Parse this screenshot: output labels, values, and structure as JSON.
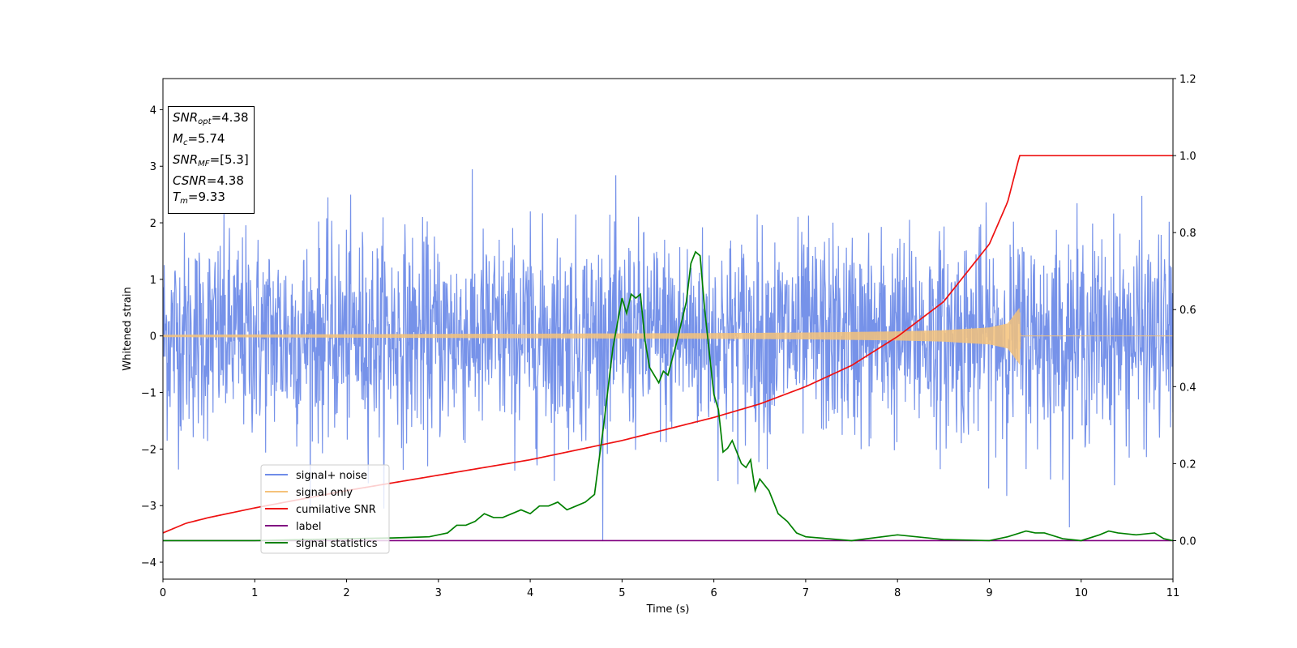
{
  "chart_data": {
    "type": "line",
    "xlabel": "Time (s)",
    "ylabel": "Whitened strain",
    "xlim": [
      0,
      11
    ],
    "ylim": [
      -4.3,
      4.55
    ],
    "y2lim": [
      -0.1,
      1.2
    ],
    "x_ticks": [
      "0",
      "1",
      "2",
      "3",
      "4",
      "5",
      "6",
      "7",
      "8",
      "9",
      "10",
      "11"
    ],
    "y_ticks": [
      "−4",
      "−3",
      "−2",
      "−1",
      "0",
      "1",
      "2",
      "3",
      "4"
    ],
    "y2_ticks": [
      "0.0",
      "0.2",
      "0.4",
      "0.6",
      "0.8",
      "1.0",
      "1.2"
    ],
    "grid": false,
    "legend_position": "lower-left",
    "series": [
      {
        "name": "signal+ noise",
        "color": "#6f8ce8",
        "axis": "left",
        "noise_sigma": 0.9,
        "ylim": [
          -3.9,
          4.2
        ]
      },
      {
        "name": "signal only",
        "color": "#f5c27a",
        "axis": "left",
        "envelope_x": [
          0,
          2,
          4,
          6,
          7,
          8,
          8.5,
          9,
          9.2,
          9.33,
          9.34,
          11
        ],
        "envelope_y": [
          0.02,
          0.03,
          0.04,
          0.05,
          0.06,
          0.08,
          0.1,
          0.15,
          0.22,
          0.5,
          0.0,
          0.0
        ],
        "merger_time": 9.33
      },
      {
        "name": "cumilative SNR",
        "color": "#ee1111",
        "axis": "right",
        "x": [
          0,
          0.25,
          0.5,
          1,
          2,
          3,
          4,
          5,
          6,
          6.5,
          7,
          7.5,
          8,
          8.5,
          9,
          9.2,
          9.33,
          11
        ],
        "values": [
          0.02,
          0.045,
          0.06,
          0.085,
          0.13,
          0.17,
          0.21,
          0.26,
          0.32,
          0.355,
          0.4,
          0.455,
          0.53,
          0.62,
          0.77,
          0.88,
          1.0,
          1.0
        ]
      },
      {
        "name": "label",
        "color": "#800080",
        "axis": "right",
        "x": [
          0,
          11
        ],
        "values": [
          0.0,
          0.0
        ]
      },
      {
        "name": "signal statistics",
        "color": "#008000",
        "axis": "right",
        "x": [
          0,
          1,
          2,
          2.5,
          2.9,
          3.0,
          3.1,
          3.2,
          3.3,
          3.4,
          3.5,
          3.6,
          3.7,
          3.8,
          3.9,
          4.0,
          4.1,
          4.2,
          4.3,
          4.4,
          4.5,
          4.6,
          4.7,
          4.8,
          4.9,
          5.0,
          5.05,
          5.1,
          5.15,
          5.2,
          5.25,
          5.3,
          5.4,
          5.45,
          5.5,
          5.6,
          5.7,
          5.75,
          5.8,
          5.85,
          5.9,
          6.0,
          6.05,
          6.1,
          6.15,
          6.2,
          6.25,
          6.3,
          6.35,
          6.4,
          6.45,
          6.5,
          6.6,
          6.7,
          6.8,
          6.9,
          7.0,
          7.5,
          8.0,
          8.5,
          9.0,
          9.2,
          9.4,
          9.5,
          9.6,
          9.8,
          10.0,
          10.2,
          10.3,
          10.4,
          10.6,
          10.8,
          10.9,
          11
        ],
        "values": [
          0.0,
          0.0,
          0.005,
          0.007,
          0.01,
          0.015,
          0.02,
          0.04,
          0.04,
          0.05,
          0.07,
          0.06,
          0.06,
          0.07,
          0.08,
          0.07,
          0.09,
          0.09,
          0.1,
          0.08,
          0.09,
          0.1,
          0.12,
          0.3,
          0.5,
          0.63,
          0.59,
          0.64,
          0.63,
          0.64,
          0.52,
          0.45,
          0.41,
          0.44,
          0.43,
          0.52,
          0.62,
          0.72,
          0.75,
          0.74,
          0.6,
          0.38,
          0.34,
          0.23,
          0.24,
          0.26,
          0.23,
          0.2,
          0.19,
          0.21,
          0.13,
          0.16,
          0.13,
          0.07,
          0.05,
          0.02,
          0.01,
          0.0,
          0.015,
          0.003,
          0.0,
          0.01,
          0.025,
          0.02,
          0.02,
          0.005,
          0.0,
          0.015,
          0.025,
          0.02,
          0.015,
          0.02,
          0.005,
          0.0
        ]
      }
    ]
  },
  "info_box": {
    "snr_opt_sym": "SNR",
    "snr_opt_sub": "opt",
    "snr_opt_val": "=4.38",
    "mc_sym": "M",
    "mc_sub": "c",
    "mc_val": "=5.74",
    "snr_mf_sym": "SNR",
    "snr_mf_sub": "MF",
    "snr_mf_val": "=[5.3]",
    "csnr_sym": "CSNR",
    "csnr_val": "=4.38",
    "tm_sym": "T",
    "tm_sub": "m",
    "tm_val": "=9.33"
  }
}
